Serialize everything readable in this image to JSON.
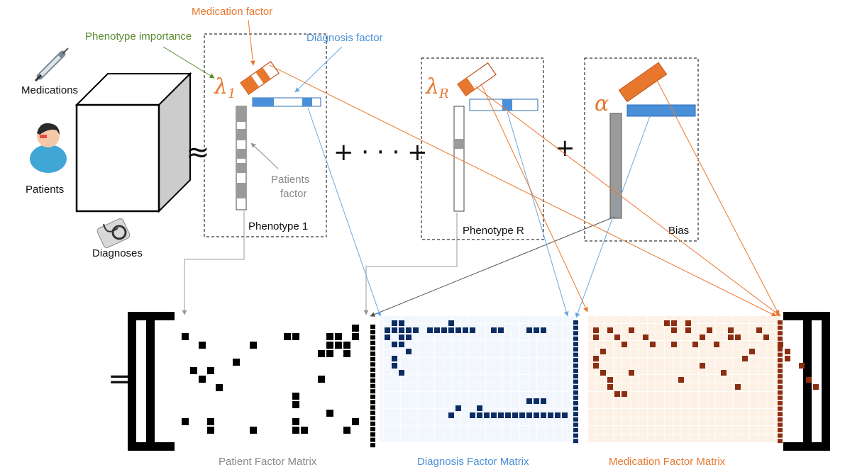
{
  "annotations": {
    "medication_factor": "Medication factor",
    "phenotype_importance": "Phenotype importance",
    "diagnosis_factor": "Diagnosis factor",
    "patients_factor_line1": "Patients",
    "patients_factor_line2": "factor"
  },
  "tensor": {
    "medications": "Medications",
    "patients": "Patients",
    "diagnoses": "Diagnoses"
  },
  "symbols": {
    "approx": "≈",
    "plus_dots": "+ · · · +",
    "plus": "+",
    "equals": "=",
    "lambda1": "λ",
    "lambda1_sub": "1",
    "lambdaR": "λ",
    "lambdaR_sub": "R",
    "alpha": "α"
  },
  "components": {
    "phenotype1": "Phenotype 1",
    "phenotypeR": "Phenotype R",
    "bias": "Bias"
  },
  "matrices": {
    "patient": "Patient Factor Matrix",
    "diagnosis": "Diagnosis Factor Matrix",
    "medication": "Medication Factor Matrix",
    "patient_cells": [
      [
        1,
        0
      ],
      [
        2,
        2
      ],
      [
        2,
        8
      ],
      [
        1,
        12
      ],
      [
        1,
        13
      ],
      [
        1,
        17
      ],
      [
        1,
        18
      ],
      [
        2,
        18
      ],
      [
        2,
        17
      ],
      [
        2,
        19
      ],
      [
        3,
        16
      ],
      [
        3,
        17
      ],
      [
        3,
        19
      ],
      [
        4,
        6
      ],
      [
        5,
        1
      ],
      [
        5,
        3
      ],
      [
        6,
        2
      ],
      [
        6,
        16
      ],
      [
        7,
        4
      ],
      [
        8,
        13
      ],
      [
        9,
        13
      ],
      [
        10,
        17
      ],
      [
        11,
        0
      ],
      [
        11,
        3
      ],
      [
        12,
        3
      ],
      [
        12,
        8
      ],
      [
        11,
        13
      ],
      [
        11,
        20
      ],
      [
        12,
        13
      ],
      [
        12,
        14
      ],
      [
        12,
        19
      ],
      [
        1,
        20
      ],
      [
        0,
        20
      ]
    ],
    "patient_col": [
      0,
      1,
      2,
      3,
      4,
      5,
      6,
      7,
      8,
      9,
      10,
      11,
      12,
      13,
      14,
      15,
      16,
      17,
      18,
      19,
      20,
      21,
      22
    ],
    "diagnosis_cells": [
      [
        1,
        0
      ],
      [
        1,
        1
      ],
      [
        1,
        2
      ],
      [
        1,
        3
      ],
      [
        1,
        6
      ],
      [
        1,
        7
      ],
      [
        1,
        8
      ],
      [
        1,
        10
      ],
      [
        1,
        11
      ],
      [
        1,
        12
      ],
      [
        1,
        15
      ],
      [
        1,
        16
      ],
      [
        1,
        20
      ],
      [
        1,
        21
      ],
      [
        1,
        22
      ],
      [
        2,
        0
      ],
      [
        2,
        2
      ],
      [
        2,
        3
      ],
      [
        3,
        1
      ],
      [
        3,
        2
      ],
      [
        4,
        3
      ],
      [
        6,
        1
      ],
      [
        5,
        1
      ],
      [
        7,
        2
      ],
      [
        0,
        1
      ],
      [
        0,
        2
      ],
      [
        0,
        9
      ],
      [
        1,
        9
      ],
      [
        1,
        4
      ],
      [
        12,
        10
      ],
      [
        12,
        13
      ],
      [
        11,
        20
      ],
      [
        11,
        21
      ],
      [
        11,
        22
      ],
      [
        13,
        9
      ],
      [
        13,
        12
      ],
      [
        13,
        13
      ],
      [
        13,
        14
      ],
      [
        13,
        15
      ],
      [
        13,
        16
      ],
      [
        13,
        17
      ],
      [
        13,
        18
      ],
      [
        13,
        19
      ],
      [
        13,
        20
      ],
      [
        13,
        21
      ],
      [
        13,
        22
      ],
      [
        13,
        23
      ],
      [
        13,
        24
      ],
      [
        13,
        25
      ]
    ],
    "diagnosis_col": [
      0,
      1,
      2,
      3,
      4,
      5,
      6,
      7,
      8,
      9,
      10,
      11,
      12,
      13,
      14,
      15,
      16,
      17,
      18,
      19,
      20,
      21,
      22
    ],
    "medication_cells": [
      [
        1,
        0
      ],
      [
        1,
        2
      ],
      [
        2,
        0
      ],
      [
        1,
        5
      ],
      [
        0,
        10
      ],
      [
        0,
        11
      ],
      [
        1,
        11
      ],
      [
        1,
        13
      ],
      [
        0,
        13
      ],
      [
        1,
        16
      ],
      [
        2,
        3
      ],
      [
        2,
        7
      ],
      [
        3,
        4
      ],
      [
        3,
        8
      ],
      [
        2,
        15
      ],
      [
        1,
        19
      ],
      [
        2,
        19
      ],
      [
        2,
        20
      ],
      [
        3,
        11
      ],
      [
        3,
        14
      ],
      [
        3,
        17
      ],
      [
        4,
        1
      ],
      [
        5,
        0
      ],
      [
        6,
        0
      ],
      [
        7,
        1
      ],
      [
        8,
        2
      ],
      [
        9,
        2
      ],
      [
        10,
        3
      ],
      [
        10,
        4
      ],
      [
        3,
        26
      ],
      [
        4,
        27
      ],
      [
        5,
        21
      ],
      [
        4,
        22
      ],
      [
        6,
        15
      ],
      [
        7,
        18
      ],
      [
        8,
        12
      ],
      [
        9,
        20
      ],
      [
        1,
        23
      ],
      [
        2,
        24
      ],
      [
        5,
        27
      ],
      [
        6,
        29
      ],
      [
        8,
        30
      ],
      [
        9,
        31
      ],
      [
        7,
        5
      ]
    ],
    "medication_col": [
      0,
      1,
      2,
      3,
      4,
      5,
      6,
      7,
      8,
      9,
      10,
      11,
      12,
      13,
      14,
      15,
      16,
      17,
      18,
      19,
      20,
      21,
      22
    ]
  },
  "colors": {
    "medication": "#e8772e",
    "diagnosis": "#4a90d9",
    "diagnosis_cell": "#0b2d63",
    "medication_cell": "#8b2e12",
    "phenotype_label": "#5a8a2e",
    "patient_label": "#888888"
  }
}
